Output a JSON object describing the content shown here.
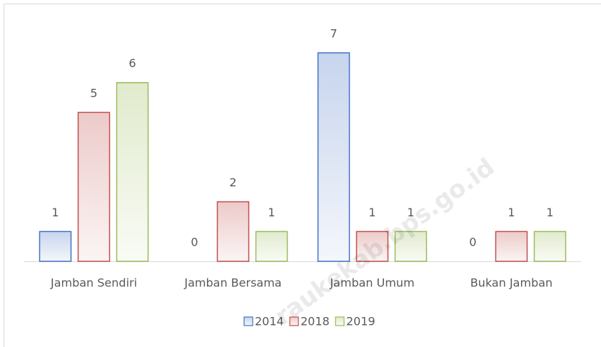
{
  "chart_data": {
    "type": "bar",
    "categories": [
      "Jamban Sendiri",
      "Jamban Bersama",
      "Jamban Umum",
      "Bukan Jamban"
    ],
    "series": [
      {
        "name": "2014",
        "color": "#4472c4",
        "values": [
          1,
          0,
          7,
          0
        ]
      },
      {
        "name": "2018",
        "color": "#c0504d",
        "values": [
          5,
          2,
          1,
          1
        ]
      },
      {
        "name": "2019",
        "color": "#9bbb59",
        "values": [
          6,
          1,
          1,
          1
        ]
      }
    ],
    "ylim": [
      0,
      7
    ],
    "legend": "bottom",
    "watermark": "raukekab.bps.go.id"
  }
}
